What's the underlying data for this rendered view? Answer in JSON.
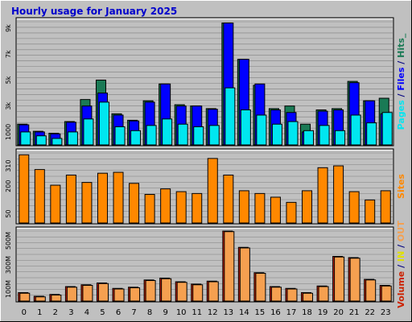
{
  "colors": {
    "background": "#c0c0c0",
    "plot_background": "#c0c0c0",
    "gridline": "#808080",
    "title": "#0000cc",
    "hits": "#1a7a55",
    "files": "#0000ff",
    "pages": "#00e6f0",
    "sites": "#ff8800",
    "volume": "#cc2200",
    "volume_in": "#f5a050",
    "volume_out": "#e0e000"
  },
  "chart_data": {
    "type": "bar",
    "title": "Hourly usage for January 2025",
    "categories": [
      "0",
      "1",
      "2",
      "3",
      "4",
      "5",
      "6",
      "7",
      "8",
      "9",
      "10",
      "11",
      "12",
      "13",
      "14",
      "15",
      "16",
      "17",
      "18",
      "19",
      "20",
      "21",
      "22",
      "23"
    ],
    "panels": [
      {
        "name": "traffic",
        "ylim": [
          0,
          9500
        ],
        "ticks": [
          "1000",
          "3k",
          "5k",
          "7k",
          "9k"
        ],
        "tick_values": [
          1000,
          3000,
          5000,
          7000,
          9000
        ],
        "right_label_parts": [
          {
            "text": "Pages",
            "color_key": "pages"
          },
          {
            "text": " / ",
            "color_key": "text_dark"
          },
          {
            "text": "Files",
            "color_key": "files"
          },
          {
            "text": " / ",
            "color_key": "text_dark"
          },
          {
            "text": "Hits_",
            "color_key": "hits"
          }
        ],
        "series": [
          {
            "name": "Hits",
            "color_key": "hits",
            "values": [
              1600,
              1050,
              900,
              1800,
              3500,
              5000,
              2400,
              1900,
              3400,
              4700,
              3100,
              3000,
              2800,
              9400,
              6600,
              4600,
              2800,
              3000,
              1600,
              2700,
              2800,
              4900,
              3400,
              3600
            ]
          },
          {
            "name": "Files",
            "color_key": "files",
            "values": [
              1550,
              1000,
              850,
              1750,
              3000,
              4000,
              2300,
              1850,
              3300,
              4700,
              3000,
              3000,
              2750,
              9400,
              6600,
              4700,
              2700,
              2500,
              1000,
              2600,
              2700,
              4800,
              3400,
              2400
            ]
          },
          {
            "name": "Pages",
            "color_key": "pages",
            "values": [
              1000,
              700,
              500,
              1000,
              2000,
              3300,
              1400,
              1100,
              1500,
              2000,
              1600,
              1400,
              1500,
              4400,
              2700,
              2300,
              1600,
              1800,
              1100,
              1500,
              1100,
              2300,
              1700,
              2500
            ]
          }
        ]
      },
      {
        "name": "sites",
        "ylim": [
          0,
          380
        ],
        "ticks": [
          "50",
          "200",
          "310"
        ],
        "tick_values": [
          50,
          200,
          310
        ],
        "right_label_parts": [
          {
            "text": "Sites",
            "color_key": "sites"
          }
        ],
        "series": [
          {
            "name": "Sites",
            "color_key": "sites",
            "values": [
              370,
              290,
              205,
              260,
              220,
              270,
              275,
              215,
              155,
              185,
              170,
              160,
              350,
              260,
              175,
              160,
              140,
              112,
              175,
              300,
              310,
              170,
              125,
              175
            ]
          }
        ]
      },
      {
        "name": "volume",
        "ylim": [
          0,
          580
        ],
        "ticks": [
          "100M",
          "300M",
          "500M"
        ],
        "tick_values": [
          100,
          300,
          500
        ],
        "right_label_parts": [
          {
            "text": "Volume",
            "color_key": "volume"
          },
          {
            "text": " / ",
            "color_key": "text_dark"
          },
          {
            "text": "IN",
            "color_key": "volume_out"
          },
          {
            "text": " / ",
            "color_key": "text_dark"
          },
          {
            "text": "OUT",
            "color_key": "volume_in"
          },
          {
            "text": " ",
            "color_key": "text_dark"
          }
        ],
        "series": [
          {
            "name": "Volume",
            "color_key": "volume",
            "values": [
              70,
              40,
              55,
              120,
              135,
              150,
              105,
              115,
              175,
              190,
              160,
              140,
              165,
              580,
              445,
              235,
              120,
              105,
              70,
              125,
              370,
              360,
              180,
              130
            ]
          },
          {
            "name": "Volume IN/OUT",
            "color_key": "volume_in",
            "values": [
              65,
              35,
              50,
              115,
              130,
              145,
              100,
              110,
              170,
              185,
              155,
              135,
              160,
              575,
              440,
              230,
              115,
              100,
              65,
              120,
              365,
              355,
              175,
              125
            ]
          }
        ]
      }
    ],
    "grid": true
  }
}
